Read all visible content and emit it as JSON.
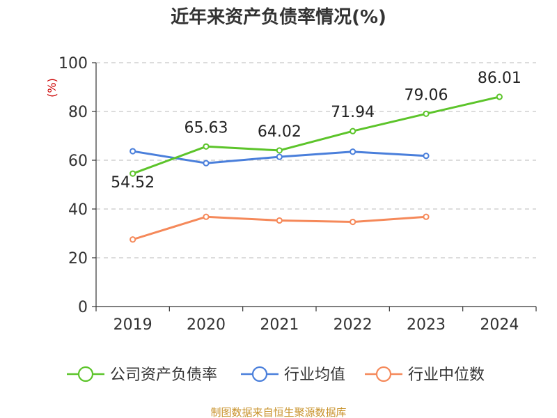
{
  "chart_data": {
    "type": "line",
    "title": "近年来资产负债率情况(%)",
    "ylabel": "(%)",
    "categories": [
      "2019",
      "2020",
      "2021",
      "2022",
      "2023",
      "2024"
    ],
    "ylim": [
      0,
      100
    ],
    "yticks": [
      0,
      20,
      40,
      60,
      80,
      100
    ],
    "grid": "horizontal-dashed",
    "legend_position": "bottom",
    "series": [
      {
        "name": "公司资产负债率",
        "color": "#5cc42a",
        "values": [
          54.52,
          65.63,
          64.02,
          71.94,
          79.06,
          86.01
        ],
        "labels": [
          "54.52",
          "65.63",
          "64.02",
          "71.94",
          "79.06",
          "86.01"
        ]
      },
      {
        "name": "行业均值",
        "color": "#4a7fdb",
        "values": [
          63.7,
          58.8,
          61.4,
          63.5,
          61.8,
          null
        ]
      },
      {
        "name": "行业中位数",
        "color": "#f5895a",
        "values": [
          27.5,
          36.8,
          35.3,
          34.7,
          36.8,
          null
        ]
      }
    ],
    "source": "制图数据来自恒生聚源数据库"
  }
}
